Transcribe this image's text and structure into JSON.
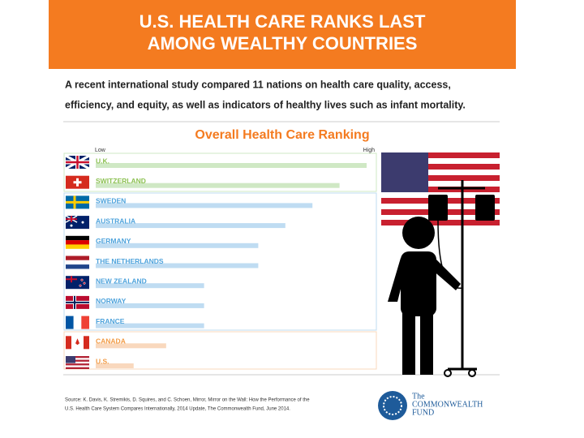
{
  "header": {
    "title_lines": [
      "U.S. HEALTH CARE RANKS LAST",
      "AMONG WEALTHY COUNTRIES"
    ]
  },
  "intro_lines": [
    "A recent international study compared 11 nations on health care quality, access,",
    "efficiency, and equity, as well as indicators of healthy lives such as infant mortality."
  ],
  "chart_data": {
    "type": "bar",
    "orientation": "horizontal",
    "title": "Overall Health Care Ranking",
    "scale_low_label": "Low",
    "scale_high_label": "High",
    "categories": [
      "U.K.",
      "SWITZERLAND",
      "SWEDEN",
      "AUSTRALIA",
      "GERMANY",
      "THE NETHERLANDS",
      "NEW ZEALAND",
      "NORWAY",
      "FRANCE",
      "CANADA",
      "U.S."
    ],
    "values": [
      100,
      90,
      80,
      70,
      60,
      60,
      40,
      40,
      40,
      26,
      14
    ],
    "bar_colors": [
      "#cfe8c4",
      "#cfe8c4",
      "#bfdcf2",
      "#bfdcf2",
      "#bfdcf2",
      "#bfdcf2",
      "#bfdcf2",
      "#bfdcf2",
      "#bfdcf2",
      "#f9d8bd",
      "#f9d8bd"
    ],
    "label_colors": [
      "#8cc152",
      "#8cc152",
      "#4ea3dc",
      "#4ea3dc",
      "#4ea3dc",
      "#4ea3dc",
      "#4ea3dc",
      "#4ea3dc",
      "#4ea3dc",
      "#f29b45",
      "#f29b45"
    ],
    "xlim": [
      0,
      100
    ]
  },
  "source_lines": [
    "Source: K. Davis, K. Stremikis, D. Squires, and C. Schoen, Mirror, Mirror on the Wall: How the Performance of the",
    "U.S. Health Care System Compares Internationally, 2014 Update, The Commonwealth Fund, June 2014."
  ],
  "logo": {
    "lines": [
      "The",
      "COMMONWEALTH",
      "FUND"
    ]
  }
}
